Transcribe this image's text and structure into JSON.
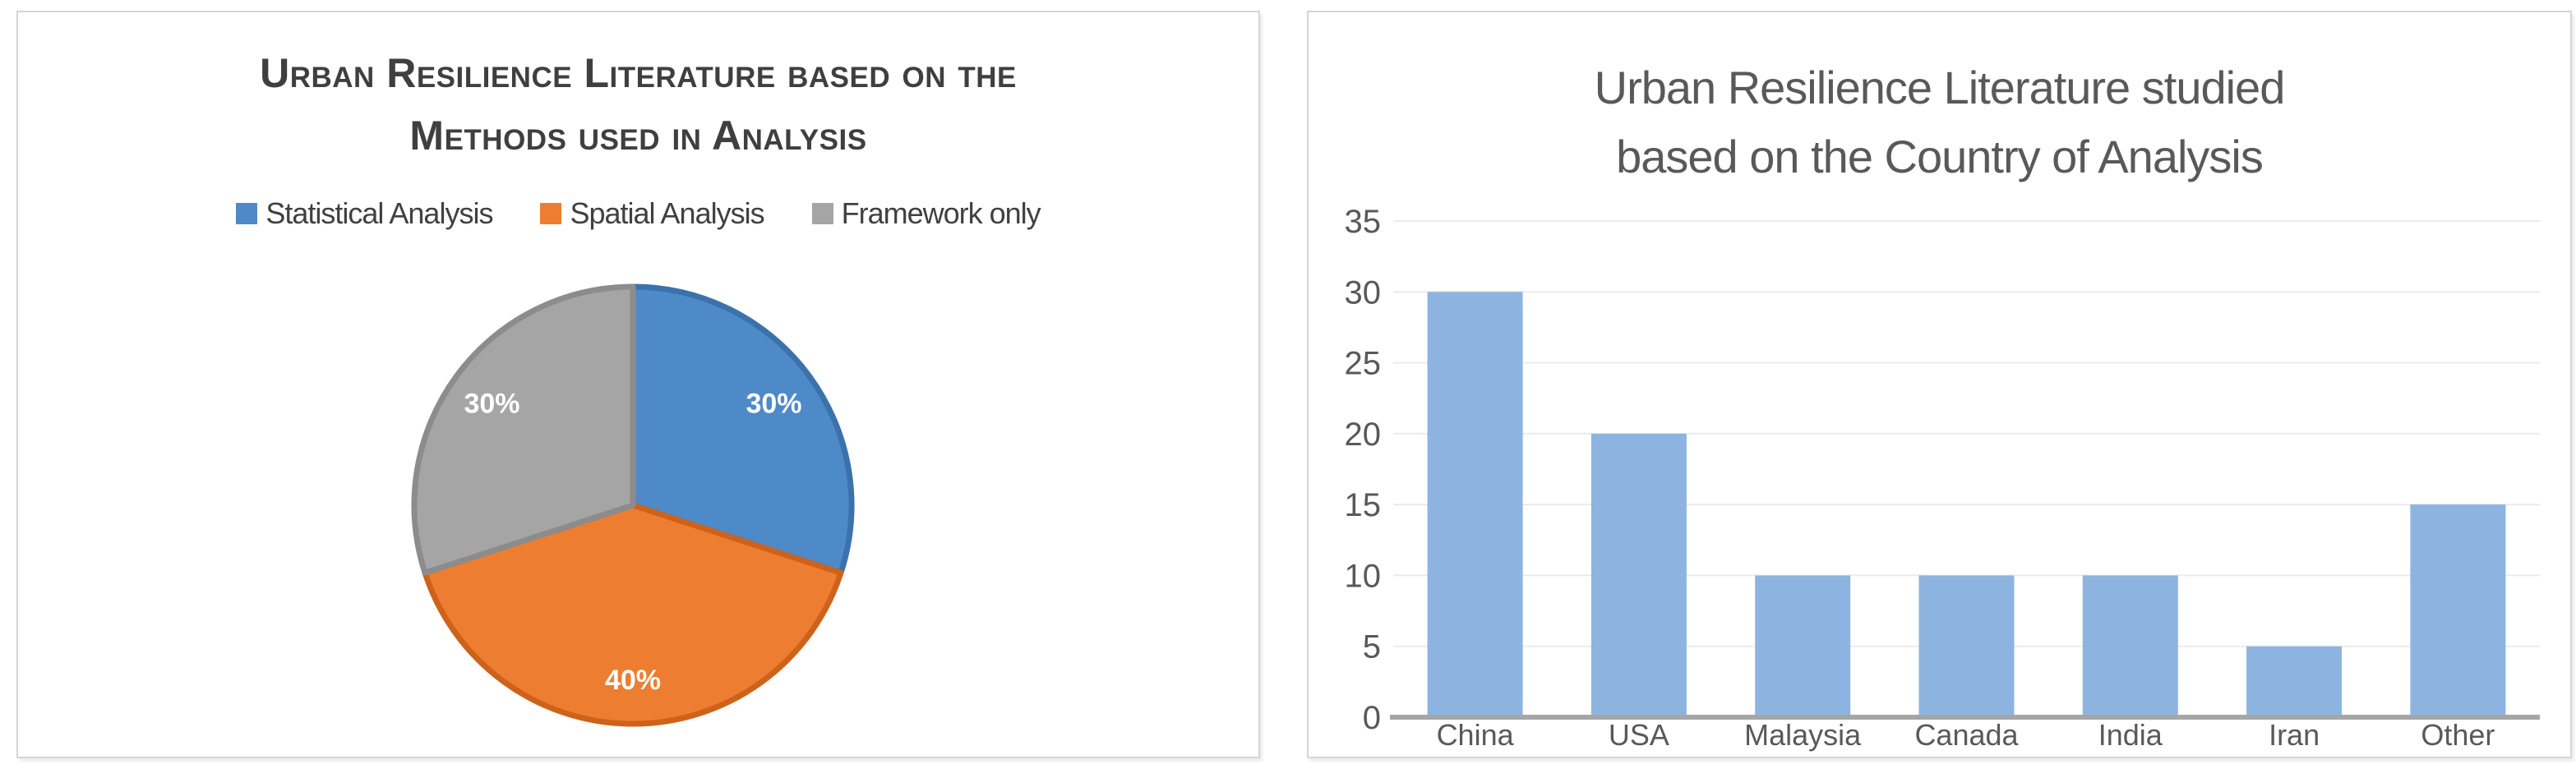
{
  "chart_data": [
    {
      "type": "pie",
      "title": "Urban Resilience Literature based on the Methods used in Analysis",
      "title_lines": [
        "Urban Resilience Literature based on the",
        "Methods used in Analysis"
      ],
      "labels": [
        "Statistical Analysis",
        "Spatial Analysis",
        "Framework only"
      ],
      "values": [
        30,
        40,
        30
      ],
      "value_labels": [
        "30%",
        "40%",
        "30%"
      ],
      "colors": [
        "#4E8AC8",
        "#ED7D31",
        "#A5A5A5"
      ],
      "edge_colors": [
        "#3C72AC",
        "#CE621B",
        "#8C8C8C"
      ],
      "data_label_color": "#FFFFFF",
      "start_angle_deg": 0,
      "direction": "clockwise",
      "legend_position": "top",
      "title_color": "#3F3F3F",
      "legend_text_color": "#404040"
    },
    {
      "type": "bar",
      "title": "Urban Resilience Literature studied based on the Country of Analysis",
      "title_lines": [
        "Urban Resilience Literature studied",
        "based on the Country of Analysis"
      ],
      "categories": [
        "China",
        "USA",
        "Malaysia",
        "Canada",
        "India",
        "Iran",
        "Other"
      ],
      "values": [
        30,
        20,
        10,
        10,
        10,
        5,
        15
      ],
      "yticks": [
        0,
        5,
        10,
        15,
        20,
        25,
        30,
        35
      ],
      "ylim": [
        0,
        35
      ],
      "grid": true,
      "bar_color": "#8DB4E0",
      "gridline_color": "#EBEBEB",
      "axis_color": "#A6A6A6",
      "tick_label_color": "#595959",
      "title_color": "#595959",
      "legend_position": "none"
    }
  ]
}
